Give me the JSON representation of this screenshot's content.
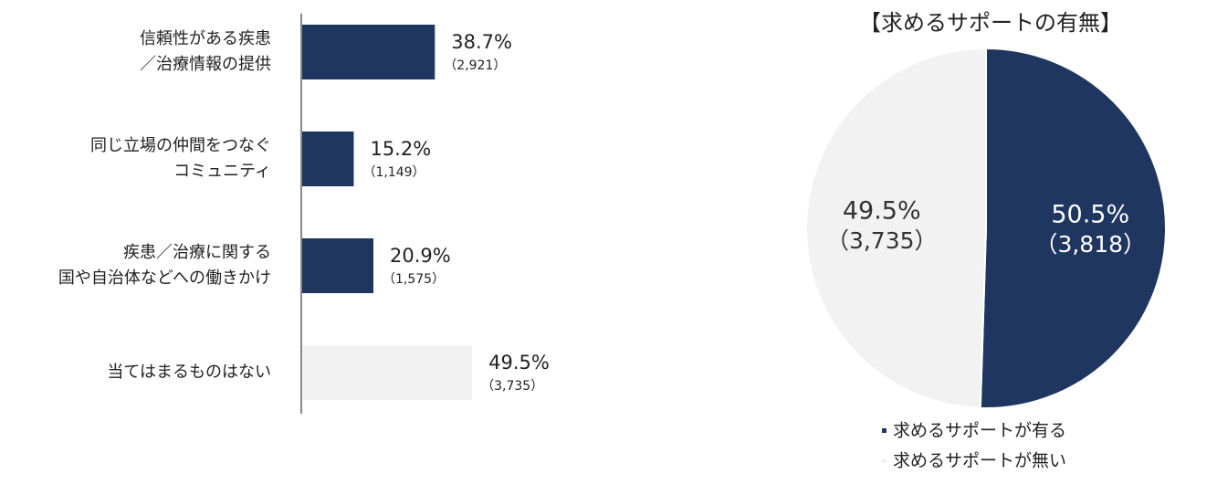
{
  "chart_data": [
    {
      "type": "hbar",
      "categories": [
        "信頼性がある疾患\n／治療情報の提供",
        "同じ立場の仲間をつなぐ\nコミュニティ",
        "疾患／治療に関する\n国や自治体などへの働きかけ",
        "当てはまるものはない"
      ],
      "values": [
        38.7,
        15.2,
        20.9,
        49.5
      ],
      "value_labels": [
        "38.7%",
        "15.2%",
        "20.9%",
        "49.5%"
      ],
      "count_labels": [
        "（2,921）",
        "（1,149）",
        "（1,575）",
        "（3,735）"
      ],
      "colors": [
        "#1f3660",
        "#1f3660",
        "#1f3660",
        "#f2f2f2"
      ],
      "xlim": [
        0,
        100
      ]
    },
    {
      "type": "pie",
      "title": "【求めるサポートの有無】",
      "categories": [
        "求めるサポートが有る",
        "求めるサポートが無い"
      ],
      "values": [
        50.5,
        49.5
      ],
      "value_labels": [
        "50.5%",
        "49.5%"
      ],
      "count_labels": [
        "（3,818）",
        "（3,735）"
      ],
      "colors": [
        "#1f3660",
        "#f2f2f2"
      ],
      "label_colors": [
        "#ffffff",
        "#333333"
      ]
    }
  ]
}
